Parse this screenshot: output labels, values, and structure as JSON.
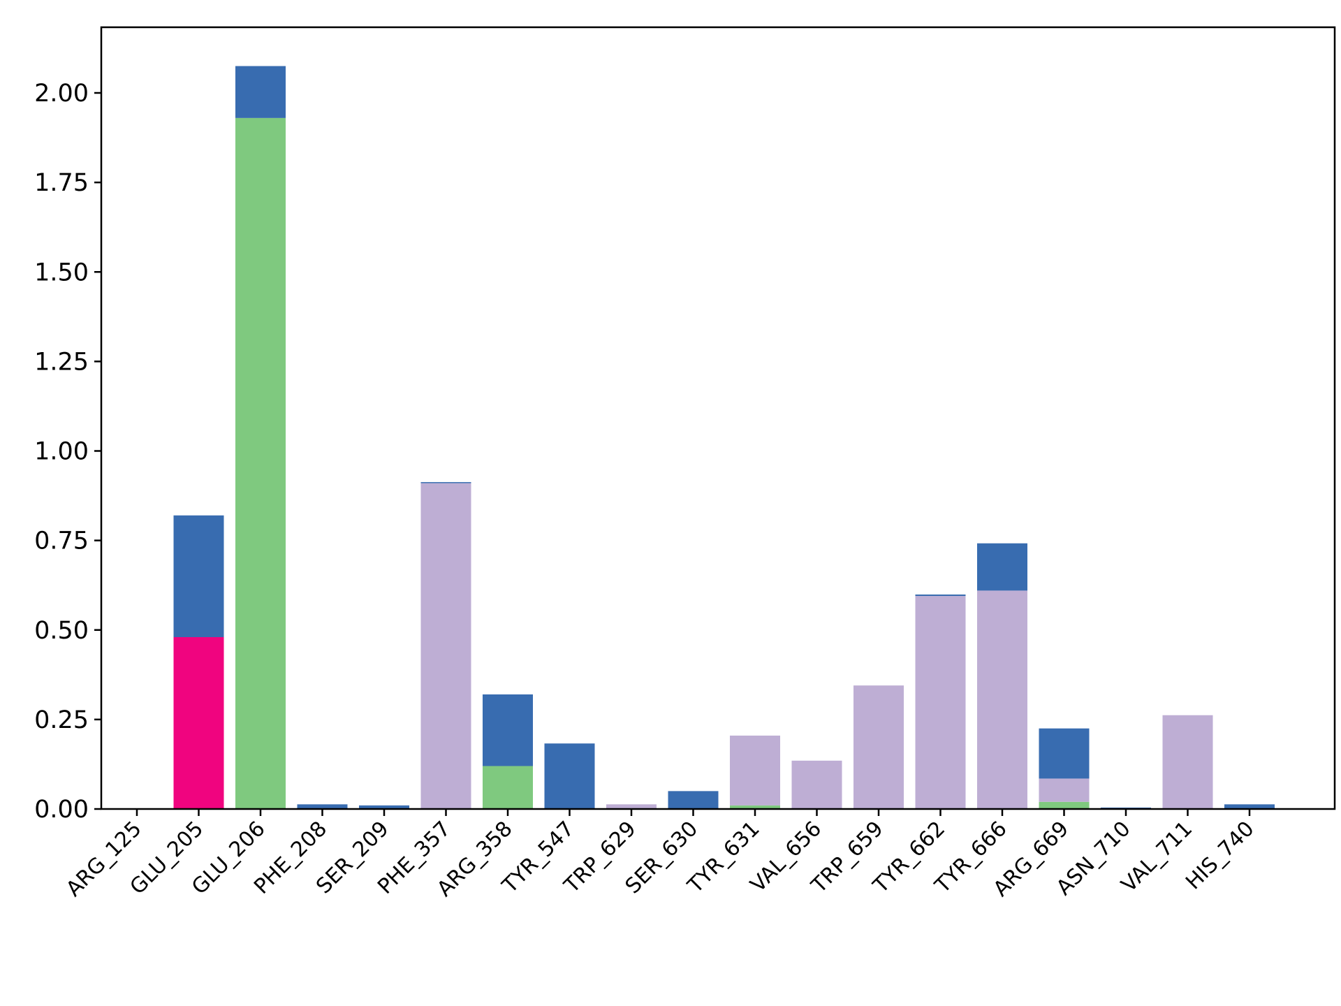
{
  "chart_data": {
    "type": "bar",
    "stacked": true,
    "categories": [
      "ARG_125",
      "GLU_205",
      "GLU_206",
      "PHE_208",
      "SER_209",
      "PHE_357",
      "ARG_358",
      "TYR_547",
      "TRP_629",
      "SER_630",
      "TYR_631",
      "VAL_656",
      "TRP_659",
      "TYR_662",
      "TYR_666",
      "ARG_669",
      "ASN_710",
      "VAL_711",
      "HIS_740"
    ],
    "series": [
      {
        "color": "#f0047f",
        "values": [
          0,
          0.48,
          0,
          0,
          0,
          0,
          0,
          0,
          0,
          0,
          0,
          0,
          0,
          0,
          0,
          0,
          0,
          0,
          0
        ]
      },
      {
        "color": "#7fc97f",
        "values": [
          0,
          0,
          1.93,
          0,
          0,
          0,
          0.12,
          0,
          0,
          0,
          0.01,
          0,
          0,
          0,
          0,
          0.02,
          0,
          0,
          0
        ]
      },
      {
        "color": "#beaed4",
        "values": [
          0,
          0,
          0,
          0,
          0,
          0.91,
          0,
          0,
          0.013,
          0,
          0.195,
          0.135,
          0.345,
          0.595,
          0.61,
          0.065,
          0,
          0.262,
          0
        ]
      },
      {
        "color": "#386cb0",
        "values": [
          0,
          0.34,
          0.145,
          0.013,
          0.01,
          0.003,
          0.2,
          0.183,
          0,
          0.05,
          0,
          0,
          0,
          0.004,
          0.132,
          0.14,
          0.004,
          0,
          0.013
        ]
      }
    ],
    "yticks": [
      "0.00",
      "0.25",
      "0.50",
      "0.75",
      "1.00",
      "1.25",
      "1.50",
      "1.75",
      "2.00"
    ],
    "ylim": [
      0,
      2.2
    ],
    "grid": false,
    "legend": "none"
  }
}
